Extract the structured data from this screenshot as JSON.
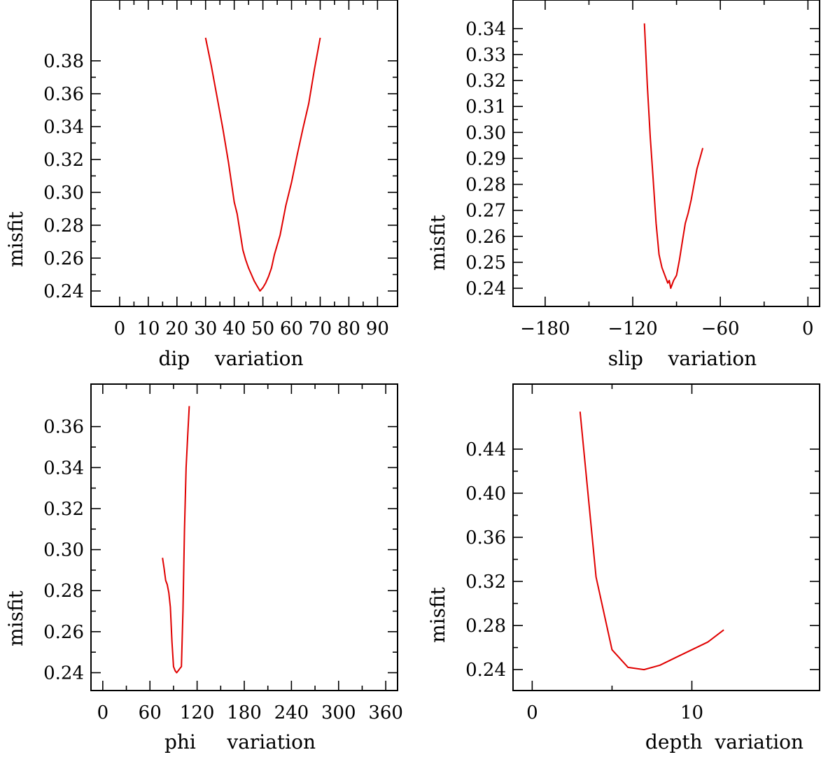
{
  "colors": {
    "curve": "#e00000",
    "axes": "#000000"
  },
  "chart_data": [
    {
      "type": "line",
      "xlabel": "dip    variation",
      "ylabel": "misfit",
      "xlim": [
        -10,
        97
      ],
      "ylim": [
        0.2306,
        0.417
      ],
      "x_ticks": [
        0,
        10,
        20,
        30,
        40,
        50,
        60,
        70,
        80,
        90
      ],
      "x_tick_labels": [
        "0",
        "10",
        "20",
        "30",
        "40",
        "50",
        "60",
        "70",
        "80",
        "90"
      ],
      "y_ticks": [
        0.24,
        0.26,
        0.28,
        0.3,
        0.32,
        0.34,
        0.36,
        0.38
      ],
      "y_tick_labels": [
        "0.24",
        "0.26",
        "0.28",
        "0.30",
        "0.32",
        "0.34",
        "0.36",
        "0.38"
      ],
      "grid": false,
      "series": [
        {
          "x": [
            30,
            32,
            34,
            36,
            38,
            40,
            41,
            42,
            43,
            44,
            45,
            46,
            47,
            48,
            49,
            50,
            51,
            52,
            53,
            54,
            56,
            58,
            60,
            62,
            64,
            66,
            68,
            70
          ],
          "y": [
            0.394,
            0.377,
            0.358,
            0.339,
            0.318,
            0.294,
            0.287,
            0.276,
            0.265,
            0.259,
            0.254,
            0.25,
            0.246,
            0.243,
            0.24,
            0.242,
            0.245,
            0.249,
            0.254,
            0.262,
            0.274,
            0.292,
            0.306,
            0.323,
            0.339,
            0.354,
            0.375,
            0.394
          ]
        }
      ]
    },
    {
      "type": "line",
      "xlabel": "slip    variation",
      "ylabel": "misfit",
      "xlim": [
        -202,
        8
      ],
      "ylim": [
        0.233,
        0.351
      ],
      "x_ticks": [
        -180,
        -120,
        -60,
        0
      ],
      "x_tick_labels": [
        "−180",
        "−120",
        "−60",
        "0"
      ],
      "y_ticks": [
        0.24,
        0.25,
        0.26,
        0.27,
        0.28,
        0.29,
        0.3,
        0.31,
        0.32,
        0.33,
        0.34
      ],
      "y_tick_labels": [
        "0.24",
        "0.25",
        "0.26",
        "0.27",
        "0.28",
        "0.29",
        "0.30",
        "0.31",
        "0.32",
        "0.33",
        "0.34"
      ],
      "grid": false,
      "series": [
        {
          "x": [
            -112,
            -110,
            -108,
            -106,
            -104,
            -102,
            -100,
            -98,
            -96,
            -95,
            -94,
            -92,
            -90,
            -88,
            -86,
            -84,
            -82,
            -80,
            -78,
            -76,
            -74,
            -72
          ],
          "y": [
            0.342,
            0.318,
            0.298,
            0.282,
            0.265,
            0.253,
            0.248,
            0.245,
            0.242,
            0.243,
            0.24,
            0.243,
            0.245,
            0.251,
            0.258,
            0.265,
            0.269,
            0.274,
            0.28,
            0.286,
            0.29,
            0.294
          ]
        }
      ]
    },
    {
      "type": "line",
      "xlabel": "phi     variation",
      "ylabel": "misfit",
      "xlim": [
        -15,
        375
      ],
      "ylim": [
        0.2313,
        0.3807
      ],
      "x_ticks": [
        0,
        60,
        120,
        180,
        240,
        300,
        360
      ],
      "x_tick_labels": [
        "0",
        "60",
        "120",
        "180",
        "240",
        "300",
        "360"
      ],
      "y_ticks": [
        0.24,
        0.26,
        0.28,
        0.3,
        0.32,
        0.34,
        0.36
      ],
      "y_tick_labels": [
        "0.24",
        "0.26",
        "0.28",
        "0.30",
        "0.32",
        "0.34",
        "0.36"
      ],
      "grid": false,
      "series": [
        {
          "x": [
            76,
            78,
            80,
            82,
            84,
            86,
            88,
            90,
            92,
            94,
            96,
            98,
            100,
            102,
            104,
            106,
            108,
            110
          ],
          "y": [
            0.296,
            0.291,
            0.285,
            0.283,
            0.279,
            0.272,
            0.255,
            0.243,
            0.241,
            0.24,
            0.241,
            0.242,
            0.243,
            0.27,
            0.31,
            0.34,
            0.355,
            0.37
          ]
        }
      ]
    },
    {
      "type": "line",
      "xlabel": "depth  variation",
      "ylabel": "misfit",
      "xlim": [
        -1.2,
        18.0
      ],
      "ylim": [
        0.221,
        0.499
      ],
      "x_ticks": [
        0,
        10
      ],
      "x_tick_labels": [
        "0",
        "10"
      ],
      "y_ticks": [
        0.24,
        0.28,
        0.32,
        0.36,
        0.4,
        0.44
      ],
      "y_tick_labels": [
        "0.24",
        "0.28",
        "0.32",
        "0.36",
        "0.40",
        "0.44"
      ],
      "grid": false,
      "series": [
        {
          "x": [
            3,
            4,
            5,
            6,
            7,
            8,
            9,
            10,
            11,
            12
          ],
          "y": [
            0.474,
            0.324,
            0.258,
            0.242,
            0.24,
            0.244,
            0.251,
            0.258,
            0.265,
            0.276
          ]
        }
      ]
    }
  ]
}
